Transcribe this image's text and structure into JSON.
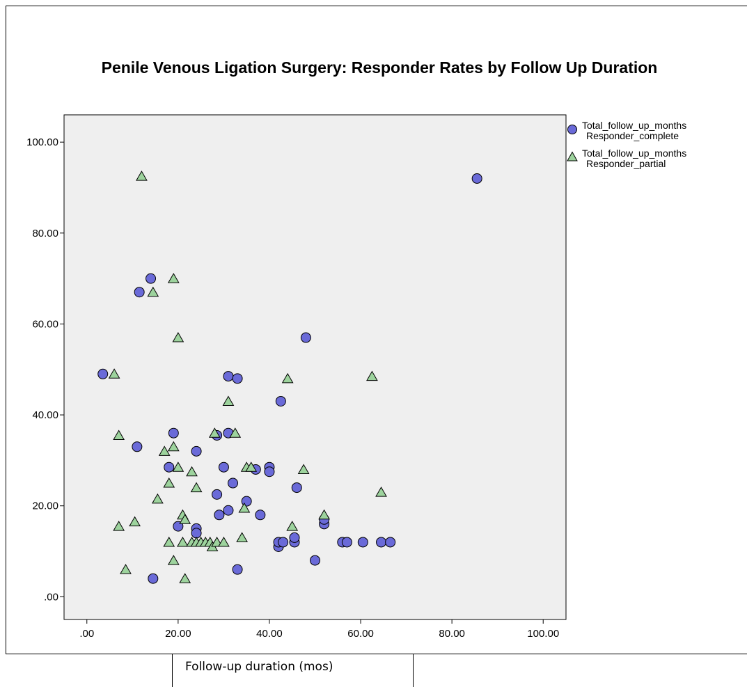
{
  "chart_data": {
    "type": "scatter",
    "title": "Penile Venous Ligation Surgery: Responder Rates by Follow Up Duration",
    "xlabel": "",
    "ylabel": "",
    "xlim": [
      -5,
      105
    ],
    "ylim": [
      -5,
      106
    ],
    "x_ticks": [
      0,
      20,
      40,
      60,
      80,
      100
    ],
    "x_tick_labels": [
      ".00",
      "20.00",
      "40.00",
      "60.00",
      "80.00",
      "100.00"
    ],
    "y_ticks": [
      0,
      20,
      40,
      60,
      80,
      100
    ],
    "y_tick_labels": [
      ".00",
      "20.00",
      "40.00",
      "60.00",
      "80.00",
      "100.00"
    ],
    "grid": false,
    "legend_position": "right",
    "plot_background": "#efefef",
    "series": [
      {
        "name_line1": "Total_follow_up_months",
        "name_line2": "Responder_complete",
        "marker": "circle",
        "color": "#6a6ad8",
        "points": [
          [
            3.5,
            49
          ],
          [
            11,
            33
          ],
          [
            11.5,
            67
          ],
          [
            14,
            70
          ],
          [
            14.5,
            4
          ],
          [
            18,
            28.5
          ],
          [
            19,
            36
          ],
          [
            20,
            15.5
          ],
          [
            24,
            32
          ],
          [
            24,
            15
          ],
          [
            24,
            14
          ],
          [
            28.5,
            35.5
          ],
          [
            28.5,
            22.5
          ],
          [
            29,
            18
          ],
          [
            30,
            28.5
          ],
          [
            31,
            36
          ],
          [
            31,
            19
          ],
          [
            31,
            48.5
          ],
          [
            32,
            25
          ],
          [
            33,
            48
          ],
          [
            33,
            6
          ],
          [
            35,
            21
          ],
          [
            37,
            28
          ],
          [
            38,
            18
          ],
          [
            40,
            28.5
          ],
          [
            40,
            27.5
          ],
          [
            42,
            11
          ],
          [
            42,
            12
          ],
          [
            42.5,
            43
          ],
          [
            43,
            12
          ],
          [
            45.5,
            12
          ],
          [
            45.5,
            13
          ],
          [
            46,
            24
          ],
          [
            48,
            57
          ],
          [
            50,
            8
          ],
          [
            52,
            16
          ],
          [
            52,
            17
          ],
          [
            56,
            12
          ],
          [
            57,
            12
          ],
          [
            60.5,
            12
          ],
          [
            64.5,
            12
          ],
          [
            66.5,
            12
          ],
          [
            85.5,
            92
          ]
        ]
      },
      {
        "name_line1": "Total_follow_up_months",
        "name_line2": "Responder_partial",
        "marker": "triangle",
        "color": "#9dd39d",
        "points": [
          [
            6,
            49
          ],
          [
            7,
            35.5
          ],
          [
            7,
            15.5
          ],
          [
            8.5,
            6
          ],
          [
            10.5,
            16.5
          ],
          [
            12,
            92.5
          ],
          [
            14.5,
            67
          ],
          [
            15.5,
            21.5
          ],
          [
            17,
            32
          ],
          [
            18,
            12
          ],
          [
            18,
            25
          ],
          [
            19,
            70
          ],
          [
            19,
            33
          ],
          [
            19,
            8
          ],
          [
            20,
            57
          ],
          [
            20,
            28.5
          ],
          [
            21,
            18
          ],
          [
            21,
            12
          ],
          [
            21.5,
            4
          ],
          [
            21.5,
            17
          ],
          [
            23,
            27.5
          ],
          [
            23,
            12
          ],
          [
            24,
            24
          ],
          [
            24,
            12
          ],
          [
            25,
            12
          ],
          [
            26,
            12
          ],
          [
            27,
            12
          ],
          [
            27.5,
            11
          ],
          [
            28,
            36
          ],
          [
            28.5,
            12
          ],
          [
            30,
            12
          ],
          [
            31,
            43
          ],
          [
            32.5,
            36
          ],
          [
            34,
            13
          ],
          [
            34.5,
            19.5
          ],
          [
            35,
            28.5
          ],
          [
            36,
            28.5
          ],
          [
            44,
            48
          ],
          [
            45,
            15.5
          ],
          [
            47.5,
            28
          ],
          [
            52,
            18
          ],
          [
            62.5,
            48.5
          ],
          [
            64.5,
            23
          ]
        ]
      }
    ]
  },
  "footer": {
    "caption": "Follow-up duration (mos)"
  }
}
